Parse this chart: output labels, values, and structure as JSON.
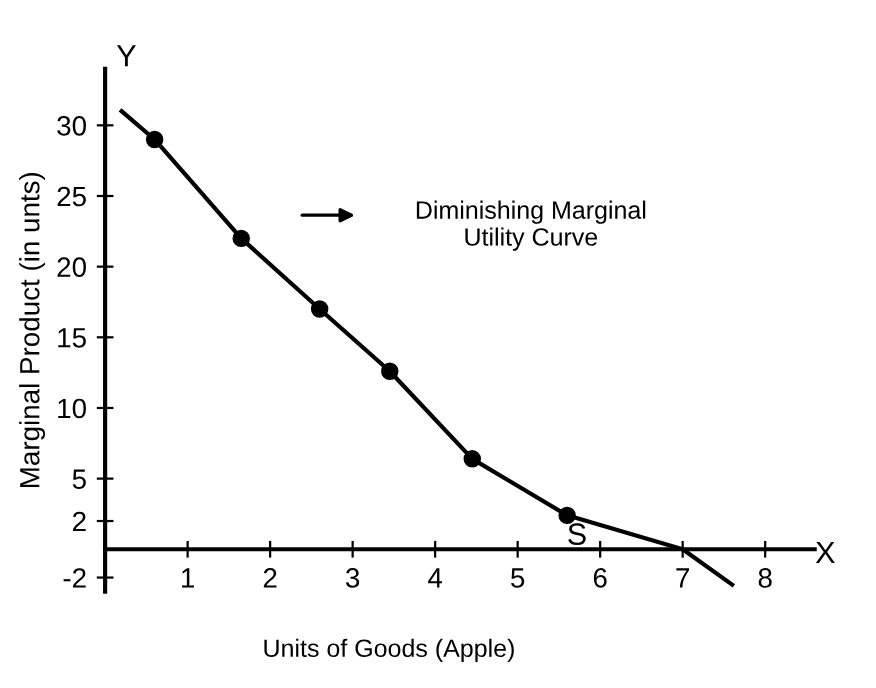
{
  "chart_data": {
    "type": "scatter",
    "xlabel": "Units of Goods (Apple)",
    "ylabel": "Marginal Product (in unts)",
    "series": [
      {
        "type": "line",
        "color": "#000000",
        "marker": "none",
        "x": [
          0.2,
          0.6,
          1.65,
          2.6,
          3.45,
          4.45,
          5.6,
          7.0,
          7.6
        ],
        "values": [
          31,
          29,
          22,
          17,
          12.6,
          6.4,
          2.4,
          0,
          -2.5
        ]
      },
      {
        "color": "#000000",
        "marker": "circle",
        "x": [
          0.6,
          1.65,
          2.6,
          3.45,
          4.45,
          5.6
        ],
        "values": [
          29,
          22,
          17,
          12.6,
          6.4,
          2.4
        ]
      }
    ],
    "xlim": [
      0,
      8.6
    ],
    "ylim": [
      -3,
      34
    ],
    "xticks": [
      1,
      2,
      3,
      4,
      5,
      6,
      7,
      8
    ],
    "yticks": [
      -2,
      2,
      5,
      10,
      15,
      20,
      25,
      30
    ],
    "annotations": [
      "S",
      "X",
      "Y",
      "Diminishing Marginal\nUtility Curve"
    ],
    "grid": false,
    "legend": false
  }
}
